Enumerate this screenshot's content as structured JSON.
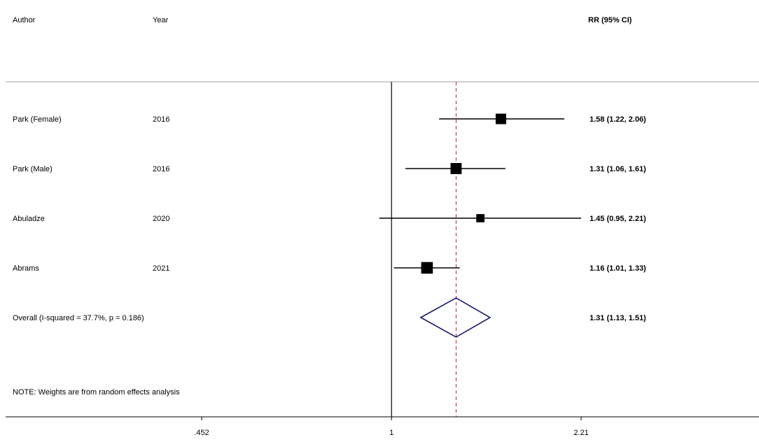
{
  "chart_data": {
    "type": "forest",
    "header": {
      "author": "Author",
      "year": "Year",
      "estimate": "RR (95% CI)"
    },
    "studies": [
      {
        "author": "Park (Female)",
        "year": "2016",
        "rr": 1.58,
        "lower": 1.22,
        "upper": 2.06,
        "label": "1.58 (1.22, 2.06)",
        "weight": 0.25
      },
      {
        "author": "Park (Male)",
        "year": "2016",
        "rr": 1.31,
        "lower": 1.06,
        "upper": 1.61,
        "label": "1.31 (1.06, 1.61)",
        "weight": 0.3
      },
      {
        "author": "Abuladze",
        "year": "2020",
        "rr": 1.45,
        "lower": 0.95,
        "upper": 2.21,
        "label": "1.45 (0.95, 2.21)",
        "weight": 0.1
      },
      {
        "author": "Abrams",
        "year": "2021",
        "rr": 1.16,
        "lower": 1.01,
        "upper": 1.33,
        "label": "1.16 (1.01, 1.33)",
        "weight": 0.35
      }
    ],
    "overall": {
      "label": "Overall  (I-squared = 37.7%, p = 0.186)",
      "rr": 1.31,
      "lower": 1.13,
      "upper": 1.51,
      "estimate_label": "1.31 (1.13, 1.51)"
    },
    "note": "NOTE: Weights are from random effects analysis",
    "x_axis": {
      "scale": "log",
      "ticks": [
        0.452,
        1,
        2.21
      ],
      "tick_labels": [
        ".452",
        "1",
        "2.21"
      ],
      "range": [
        0.452,
        2.21
      ]
    },
    "null_value": 1,
    "colors": {
      "marker": "#000000",
      "ci_line": "#000000",
      "diamond": "#1a1f6e",
      "reference_line": "#b22222",
      "axis": "#000000",
      "separator": "#a0a0a0"
    }
  }
}
